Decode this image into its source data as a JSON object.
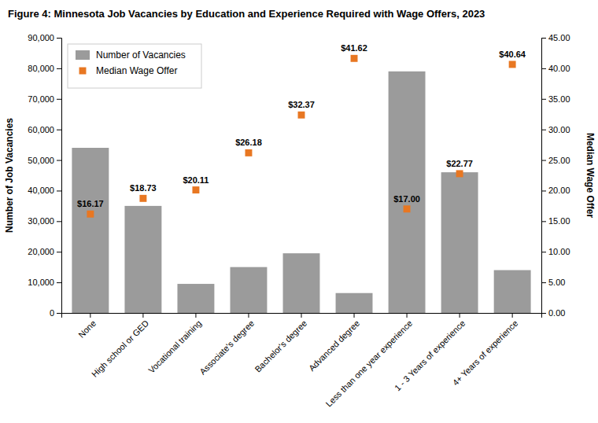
{
  "chart_data": {
    "type": "bar",
    "title": "Figure 4: Minnesota Job Vacancies by Education and Experience Required with Wage Offers, 2023",
    "categories": [
      "None",
      "High school or GED",
      "Vocational training",
      "Associate's degree",
      "Bachelor's degree",
      "Advanced degree",
      "Less than one year experience",
      "1 - 3 Years of experience",
      "4+ Years of experience"
    ],
    "series": [
      {
        "name": "Number of Vacancies",
        "type": "bar",
        "color": "#9B9B9B",
        "values": [
          54000,
          35000,
          9500,
          15000,
          19500,
          6500,
          79000,
          46000,
          14000
        ]
      },
      {
        "name": "Median Wage Offer",
        "type": "scatter",
        "axis": "y2",
        "marker": "square",
        "color": "#E87722",
        "data_labels": true,
        "values": [
          16.17,
          18.73,
          20.11,
          26.18,
          32.37,
          41.62,
          17.0,
          22.77,
          40.64
        ],
        "value_labels": [
          "$16.17",
          "$18.73",
          "$20.11",
          "$26.18",
          "$32.37",
          "$41.62",
          "$17.00",
          "$22.77",
          "$40.64"
        ]
      }
    ],
    "y_label": "Number of Job Vacancies",
    "y2_label": "Median Wage Offer",
    "ylim": [
      0,
      90000
    ],
    "yticks": [
      0,
      {
        "value": 10000,
        "label": "10,000"
      },
      {
        "value": 20000,
        "label": "20,000"
      },
      {
        "value": 30000,
        "label": "30,000"
      },
      {
        "value": 40000,
        "label": "40,000"
      },
      {
        "value": 50000,
        "label": "50,000"
      },
      {
        "value": 60000,
        "label": "60,000"
      },
      {
        "value": 70000,
        "label": "70,000"
      },
      {
        "value": 80000,
        "label": "80,000"
      },
      {
        "value": 90000,
        "label": "90,000"
      }
    ],
    "y2lim": [
      0,
      45
    ],
    "y2ticks": [
      {
        "value": 0,
        "label": "0.00"
      },
      {
        "value": 5,
        "label": "5.00"
      },
      {
        "value": 10,
        "label": "10.00"
      },
      {
        "value": 15,
        "label": "15.00"
      },
      {
        "value": 20,
        "label": "20.00"
      },
      {
        "value": 25,
        "label": "25.00"
      },
      {
        "value": 30,
        "label": "30.00"
      },
      {
        "value": 35,
        "label": "35.00"
      },
      {
        "value": 40,
        "label": "40.00"
      },
      {
        "value": 45,
        "label": "45.00"
      }
    ],
    "legend": "upper left",
    "grid": false
  }
}
